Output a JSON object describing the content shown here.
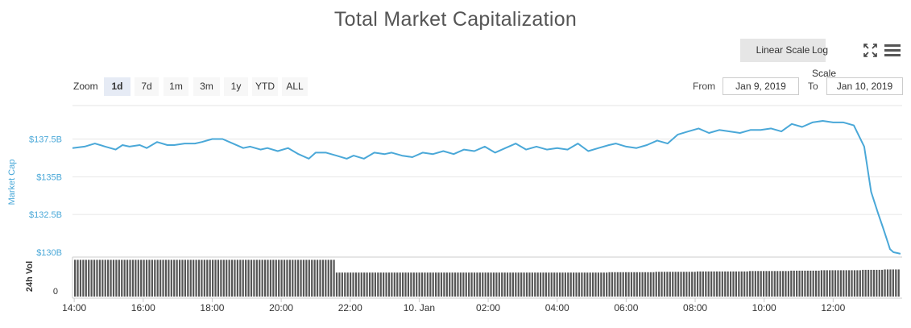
{
  "title": "Total Market Capitalization",
  "scale_buttons": {
    "linear": "Linear Scale",
    "log": "Log Scale",
    "active": "linear"
  },
  "zoom": {
    "label": "Zoom",
    "options": [
      "1d",
      "7d",
      "1m",
      "3m",
      "1y",
      "YTD",
      "ALL"
    ],
    "active": "1d"
  },
  "range": {
    "from_label": "From",
    "from_value": "Jan 9, 2019",
    "to_label": "To",
    "to_value": "Jan 10, 2019"
  },
  "icons": {
    "expand": "expand-icon",
    "menu": "hamburger-menu-icon"
  },
  "colors": {
    "series": "#4aa8d8",
    "volume": "#555555",
    "axis_label": "#4aa8d8"
  },
  "chart_data": {
    "type": "line",
    "title": "Total Market Capitalization",
    "ylabel": "Market Cap",
    "y_ticks": [
      "$130B",
      "$132.5B",
      "$135B",
      "$137.5B"
    ],
    "ylim": [
      130,
      140.5
    ],
    "y_unit": "billion USD",
    "x_ticks": [
      "14:00",
      "16:00",
      "18:00",
      "20:00",
      "22:00",
      "10. Jan",
      "02:00",
      "04:00",
      "06:00",
      "08:00",
      "10:00",
      "12:00"
    ],
    "x_range_hours": [
      13.95,
      38.0
    ],
    "series": [
      {
        "x": [
          13.95,
          14.3,
          14.6,
          14.9,
          15.2,
          15.4,
          15.6,
          15.9,
          16.1,
          16.4,
          16.7,
          16.9,
          17.2,
          17.5,
          17.7,
          18.0,
          18.3,
          18.6,
          18.9,
          19.1,
          19.4,
          19.6,
          19.9,
          20.2,
          20.5,
          20.8,
          21.0,
          21.3,
          21.6,
          21.9,
          22.1,
          22.4,
          22.7,
          23.0,
          23.2,
          23.5,
          23.8,
          24.1,
          24.4,
          24.7,
          25.0,
          25.3,
          25.6,
          25.9,
          26.2,
          26.5,
          26.8,
          27.1,
          27.4,
          27.7,
          28.0,
          28.3,
          28.6,
          28.9,
          29.2,
          29.5,
          29.7,
          30.0,
          30.3,
          30.6,
          30.9,
          31.2,
          31.5,
          31.8,
          32.1,
          32.4,
          32.7,
          33.0,
          33.3,
          33.6,
          33.9,
          34.2,
          34.5,
          34.8,
          35.1,
          35.4,
          35.7,
          36.0,
          36.3,
          36.6,
          36.9,
          37.1,
          37.3,
          37.45,
          37.55,
          37.65,
          37.75,
          37.85,
          37.95
        ],
        "y": [
          136.9,
          137.0,
          137.2,
          137.0,
          136.8,
          137.1,
          137.0,
          137.1,
          136.9,
          137.3,
          137.1,
          137.1,
          137.2,
          137.2,
          137.3,
          137.5,
          137.5,
          137.2,
          136.9,
          137.0,
          136.8,
          136.9,
          136.7,
          136.9,
          136.5,
          136.2,
          136.6,
          136.6,
          136.4,
          136.2,
          136.4,
          136.2,
          136.6,
          136.5,
          136.6,
          136.4,
          136.3,
          136.6,
          136.5,
          136.7,
          136.5,
          136.8,
          136.7,
          137.0,
          136.6,
          136.9,
          137.2,
          136.8,
          137.0,
          136.8,
          136.9,
          136.8,
          137.2,
          136.7,
          136.9,
          137.1,
          137.2,
          137.0,
          136.9,
          137.1,
          137.4,
          137.2,
          137.8,
          138.0,
          138.2,
          137.9,
          138.1,
          138.0,
          137.9,
          138.1,
          138.1,
          138.2,
          138.0,
          138.5,
          138.3,
          138.6,
          138.7,
          138.6,
          138.6,
          138.4,
          137.0,
          134.0,
          132.6,
          131.6,
          130.9,
          130.2,
          130.0,
          129.95,
          129.9
        ],
        "volume_normalized": [
          0.95,
          0.95,
          0.95,
          0.95,
          0.95,
          0.95,
          0.95,
          0.95,
          0.95,
          0.95,
          0.95,
          0.95,
          0.95,
          0.95,
          0.95,
          0.95,
          0.95,
          0.95,
          0.95,
          0.95,
          0.95,
          0.95,
          0.95,
          0.95,
          0.95,
          0.95,
          0.95,
          0.95,
          0.62,
          0.62,
          0.62,
          0.62,
          0.62,
          0.62,
          0.62,
          0.62,
          0.62,
          0.62,
          0.62,
          0.62,
          0.62,
          0.62,
          0.62,
          0.62,
          0.62,
          0.62,
          0.62,
          0.62,
          0.62,
          0.62,
          0.62,
          0.62,
          0.62,
          0.62,
          0.62,
          0.63,
          0.63,
          0.63,
          0.63,
          0.63,
          0.64,
          0.64,
          0.64,
          0.64,
          0.65,
          0.65,
          0.65,
          0.65,
          0.65,
          0.66,
          0.66,
          0.66,
          0.66,
          0.67,
          0.67,
          0.67,
          0.68,
          0.68,
          0.68,
          0.68,
          0.69,
          0.69,
          0.69,
          0.69,
          0.7,
          0.7,
          0.7,
          0.7,
          0.7
        ]
      }
    ],
    "volume_axis": {
      "label": "24h Vol",
      "ticks": [
        "0"
      ]
    }
  }
}
